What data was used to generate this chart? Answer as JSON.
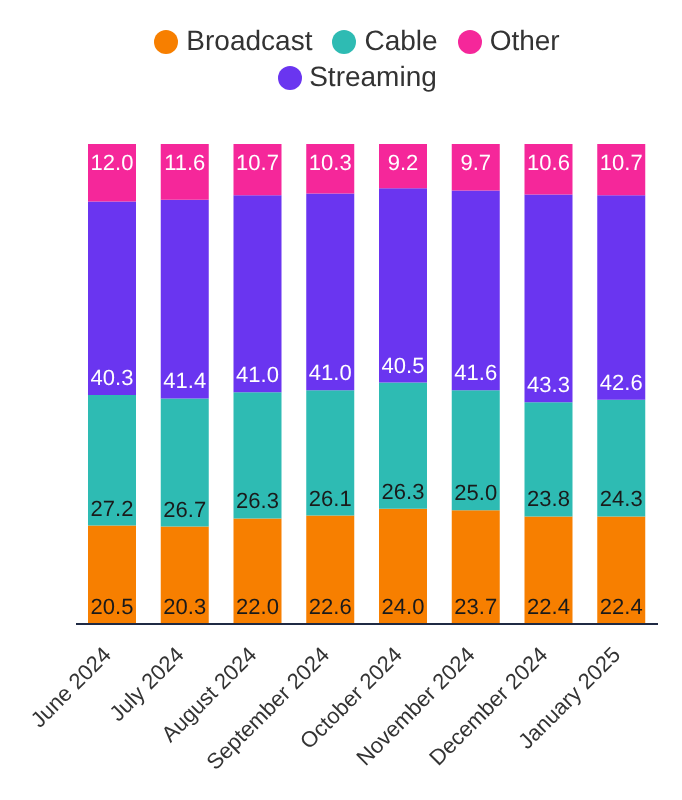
{
  "chart_data": {
    "type": "bar",
    "stacked": true,
    "categories": [
      "June 2024",
      "July 2024",
      "August 2024",
      "September 2024",
      "October 2024",
      "November 2024",
      "December 2024",
      "January 2025"
    ],
    "series": [
      {
        "name": "Broadcast",
        "color": "#f77f00",
        "values": [
          20.5,
          20.3,
          22.0,
          22.6,
          24.0,
          23.7,
          22.4,
          22.4
        ],
        "value_labels": [
          "20.5",
          "20.3",
          "22.0",
          "22.6",
          "24.0",
          "23.7",
          "22.4",
          "22.4"
        ]
      },
      {
        "name": "Cable",
        "color": "#2ebbb3",
        "values": [
          27.2,
          26.7,
          26.3,
          26.1,
          26.3,
          25.0,
          23.8,
          24.3
        ],
        "value_labels": [
          "27.2",
          "26.7",
          "26.3",
          "26.1",
          "26.3",
          "25.0",
          "23.8",
          "24.3"
        ]
      },
      {
        "name": "Streaming",
        "color": "#6a35f0",
        "values": [
          40.3,
          41.4,
          41.0,
          41.0,
          40.5,
          41.6,
          43.3,
          42.6
        ],
        "value_labels": [
          "40.3",
          "41.4",
          "41.0",
          "41.0",
          "40.5",
          "41.6",
          "43.3",
          "42.6"
        ]
      },
      {
        "name": "Other",
        "color": "#f5279a",
        "values": [
          12.0,
          11.6,
          10.7,
          10.3,
          9.2,
          9.7,
          10.6,
          10.7
        ],
        "value_labels": [
          "12.0",
          "11.6",
          "10.7",
          "10.3",
          "9.2",
          "9.7",
          "10.6",
          "10.7"
        ]
      }
    ],
    "ylim": [
      0,
      100
    ],
    "legend": "top",
    "tick_labels": "x"
  }
}
